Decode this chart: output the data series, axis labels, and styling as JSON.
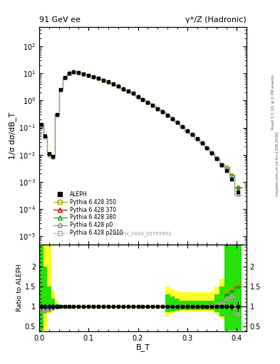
{
  "title_left": "91 GeV ee",
  "title_right": "γ*/Z (Hadronic)",
  "ylabel_main": "1/σ dσ/dB_T",
  "ylabel_ratio": "Ratio to ALEPH",
  "xlabel": "B_T",
  "right_label_top": "Rivet 3.1.10, ≥ 2.7M events",
  "right_label_bottom": "mcplots.cern.ch [arXiv:1306.3436]",
  "ref_label": "ALEPH_2004_S5765862",
  "legend_entries": [
    "ALEPH",
    "Pythia 6.428 350",
    "Pythia 6.428 370",
    "Pythia 6.428 380",
    "Pythia 6.428 p0",
    "Pythia 6.428 p2010"
  ],
  "xlim": [
    0.0,
    0.42
  ],
  "ylim_main": [
    5e-06,
    500
  ],
  "ylim_ratio": [
    0.38,
    2.55
  ],
  "band_color_yellow": "#ffff00",
  "band_color_green": "#00dd00",
  "color_350": "#aaaa00",
  "color_370": "#cc0000",
  "color_380": "#00aa00",
  "color_p0": "#888888",
  "color_p2010": "#aaaaaa",
  "color_ref": "#000000",
  "background_color": "#ffffff",
  "ref_y": [
    0.13,
    0.05,
    0.011,
    0.0085,
    0.3,
    2.5,
    7.2,
    10.3,
    11.2,
    10.6,
    9.6,
    8.6,
    7.6,
    6.6,
    5.6,
    4.85,
    4.05,
    3.35,
    2.75,
    2.25,
    1.82,
    1.42,
    1.12,
    0.87,
    0.67,
    0.51,
    0.39,
    0.29,
    0.215,
    0.155,
    0.112,
    0.079,
    0.056,
    0.039,
    0.027,
    0.018,
    0.0115,
    0.0072,
    0.0042,
    0.0026,
    0.00125,
    0.00042
  ],
  "ref_yerr_rel": [
    0.08,
    0.08,
    0.08,
    0.08,
    0.05,
    0.02,
    0.01,
    0.01,
    0.01,
    0.01,
    0.01,
    0.01,
    0.01,
    0.01,
    0.01,
    0.01,
    0.01,
    0.01,
    0.01,
    0.01,
    0.01,
    0.01,
    0.01,
    0.01,
    0.01,
    0.01,
    0.01,
    0.01,
    0.01,
    0.01,
    0.015,
    0.015,
    0.02,
    0.02,
    0.025,
    0.03,
    0.035,
    0.04,
    0.05,
    0.06,
    0.08,
    0.12
  ],
  "bt_edges": [
    0.0,
    0.008,
    0.016,
    0.024,
    0.032,
    0.04,
    0.048,
    0.056,
    0.064,
    0.075,
    0.085,
    0.095,
    0.105,
    0.115,
    0.125,
    0.135,
    0.145,
    0.155,
    0.165,
    0.175,
    0.185,
    0.195,
    0.205,
    0.215,
    0.225,
    0.235,
    0.245,
    0.255,
    0.265,
    0.275,
    0.285,
    0.295,
    0.305,
    0.315,
    0.325,
    0.335,
    0.345,
    0.355,
    0.365,
    0.375,
    0.385,
    0.395,
    0.41
  ],
  "ratio_350": [
    0.92,
    0.88,
    0.92,
    0.96,
    0.99,
    1.0,
    1.0,
    1.0,
    1.0,
    1.0,
    1.0,
    1.0,
    1.0,
    1.0,
    1.0,
    1.0,
    1.0,
    1.0,
    1.0,
    1.0,
    1.0,
    1.0,
    1.0,
    1.0,
    1.0,
    1.0,
    1.0,
    1.0,
    1.0,
    1.0,
    1.0,
    1.0,
    1.0,
    1.0,
    1.0,
    1.0,
    1.0,
    1.01,
    1.05,
    1.35,
    1.45,
    1.55
  ],
  "ratio_370": [
    0.95,
    0.92,
    0.95,
    0.97,
    1.0,
    1.0,
    1.0,
    1.0,
    1.0,
    1.0,
    1.0,
    1.0,
    1.0,
    1.0,
    1.0,
    1.0,
    1.0,
    1.0,
    1.0,
    1.0,
    1.0,
    1.0,
    1.0,
    1.0,
    1.0,
    1.0,
    1.0,
    1.0,
    1.0,
    1.0,
    1.0,
    1.0,
    1.0,
    1.0,
    1.0,
    1.0,
    1.0,
    1.0,
    1.02,
    1.3,
    1.4,
    1.5
  ],
  "ratio_380": [
    0.95,
    0.92,
    0.95,
    0.97,
    1.0,
    1.0,
    1.0,
    1.0,
    1.0,
    1.0,
    1.0,
    1.0,
    1.0,
    1.0,
    1.0,
    1.0,
    1.0,
    1.0,
    1.0,
    1.0,
    1.0,
    1.0,
    1.0,
    1.0,
    1.0,
    1.0,
    1.0,
    1.0,
    1.0,
    1.0,
    1.0,
    1.0,
    1.0,
    1.0,
    1.0,
    1.0,
    1.0,
    1.0,
    1.02,
    1.3,
    1.4,
    1.5
  ],
  "ratio_p0": [
    0.94,
    0.9,
    0.93,
    0.96,
    0.99,
    1.0,
    1.0,
    1.0,
    1.0,
    1.0,
    1.0,
    1.0,
    1.0,
    1.0,
    1.0,
    1.0,
    1.0,
    1.0,
    1.0,
    1.0,
    1.0,
    1.0,
    1.0,
    1.0,
    1.0,
    1.0,
    1.0,
    1.0,
    1.0,
    1.0,
    1.0,
    1.0,
    1.0,
    1.0,
    1.0,
    1.01,
    1.02,
    1.05,
    1.08,
    1.2,
    1.25,
    0.8
  ],
  "ratio_p2010": [
    0.94,
    0.9,
    0.93,
    0.96,
    0.99,
    1.0,
    1.0,
    1.0,
    1.0,
    1.0,
    1.0,
    1.0,
    1.0,
    1.0,
    1.0,
    1.0,
    1.0,
    1.0,
    1.0,
    1.0,
    1.0,
    1.0,
    1.0,
    1.0,
    1.0,
    1.0,
    1.0,
    1.0,
    1.0,
    1.0,
    1.0,
    1.0,
    1.0,
    1.0,
    1.0,
    1.01,
    1.02,
    1.05,
    1.08,
    1.2,
    1.25,
    0.8
  ],
  "band_yellow_lo": [
    0.4,
    0.4,
    0.82,
    0.9,
    0.94,
    0.97,
    0.98,
    0.99,
    0.99,
    0.99,
    0.99,
    0.99,
    0.99,
    0.99,
    0.99,
    0.99,
    0.99,
    0.99,
    0.99,
    0.99,
    0.99,
    0.99,
    0.99,
    0.99,
    0.99,
    0.99,
    0.99,
    0.75,
    0.82,
    0.85,
    0.87,
    0.87,
    0.87,
    0.87,
    0.87,
    0.87,
    0.87,
    0.8,
    0.7,
    0.4,
    0.4,
    0.4
  ],
  "band_yellow_hi": [
    2.55,
    2.55,
    2.55,
    1.4,
    1.1,
    1.04,
    1.02,
    1.01,
    1.01,
    1.01,
    1.01,
    1.01,
    1.01,
    1.01,
    1.01,
    1.01,
    1.01,
    1.01,
    1.01,
    1.01,
    1.01,
    1.01,
    1.01,
    1.01,
    1.01,
    1.01,
    1.01,
    1.5,
    1.45,
    1.4,
    1.35,
    1.35,
    1.35,
    1.35,
    1.35,
    1.35,
    1.35,
    1.5,
    1.7,
    2.55,
    2.55,
    2.55
  ],
  "band_green_lo": [
    0.4,
    0.82,
    0.88,
    0.92,
    0.96,
    0.98,
    0.99,
    0.995,
    0.995,
    0.995,
    0.995,
    0.995,
    0.995,
    0.995,
    0.995,
    0.995,
    0.995,
    0.995,
    0.995,
    0.995,
    0.995,
    0.995,
    0.995,
    0.995,
    0.995,
    0.995,
    0.995,
    0.85,
    0.88,
    0.9,
    0.92,
    0.92,
    0.92,
    0.92,
    0.92,
    0.92,
    0.92,
    0.85,
    0.75,
    0.4,
    0.4,
    0.4
  ],
  "band_green_hi": [
    2.55,
    2.0,
    1.5,
    1.2,
    1.06,
    1.02,
    1.01,
    1.005,
    1.005,
    1.005,
    1.005,
    1.005,
    1.005,
    1.005,
    1.005,
    1.005,
    1.005,
    1.005,
    1.005,
    1.005,
    1.005,
    1.005,
    1.005,
    1.005,
    1.005,
    1.005,
    1.005,
    1.3,
    1.25,
    1.2,
    1.15,
    1.15,
    1.15,
    1.15,
    1.15,
    1.15,
    1.15,
    1.3,
    1.5,
    2.55,
    2.55,
    2.55
  ]
}
